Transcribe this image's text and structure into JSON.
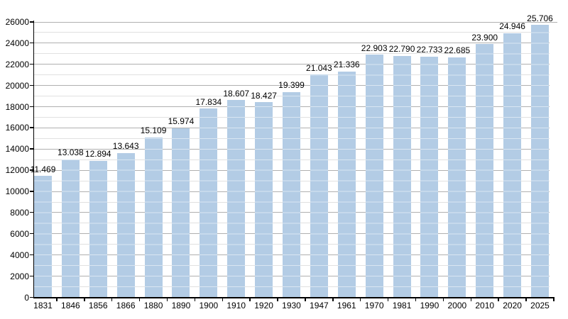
{
  "chart_data": {
    "type": "bar",
    "title": "",
    "xlabel": "",
    "ylabel": "",
    "categories": [
      "1831",
      "1846",
      "1856",
      "1866",
      "1880",
      "1890",
      "1900",
      "1910",
      "1920",
      "1930",
      "1947",
      "1961",
      "1970",
      "1981",
      "1990",
      "2000",
      "2010",
      "2020",
      "2025"
    ],
    "values": [
      11469,
      13038,
      12894,
      13643,
      15109,
      15974,
      17834,
      18607,
      18427,
      19399,
      21043,
      21336,
      22903,
      22790,
      22733,
      22685,
      23900,
      24946,
      25706
    ],
    "value_labels": [
      "11.469",
      "13.038",
      "12.894",
      "13.643",
      "15.109",
      "15.974",
      "17.834",
      "18.607",
      "18.427",
      "19.399",
      "21.043",
      "21.336",
      "22.903",
      "22.790",
      "22.733",
      "22.685",
      "23.900",
      "24.946",
      "25.706"
    ],
    "y_tick_labels": [
      "0",
      "2000",
      "4000",
      "6000",
      "8000",
      "10000",
      "12000",
      "14000",
      "16000",
      "18000",
      "20000",
      "22000",
      "24000",
      "26000"
    ],
    "ylim": [
      0,
      26000
    ],
    "major_grid_step": 2000,
    "minor_grid_step": 1000,
    "grid": true,
    "legend": false,
    "colors": {
      "bar": "#b3cce5",
      "major_grid": "#b0b0b0",
      "minor_grid": "#e1e1e1",
      "bar_grid_overlay": "rgba(255,255,255,0.5)",
      "axis": "#000000",
      "text": "#000000",
      "background": "#ffffff"
    }
  }
}
